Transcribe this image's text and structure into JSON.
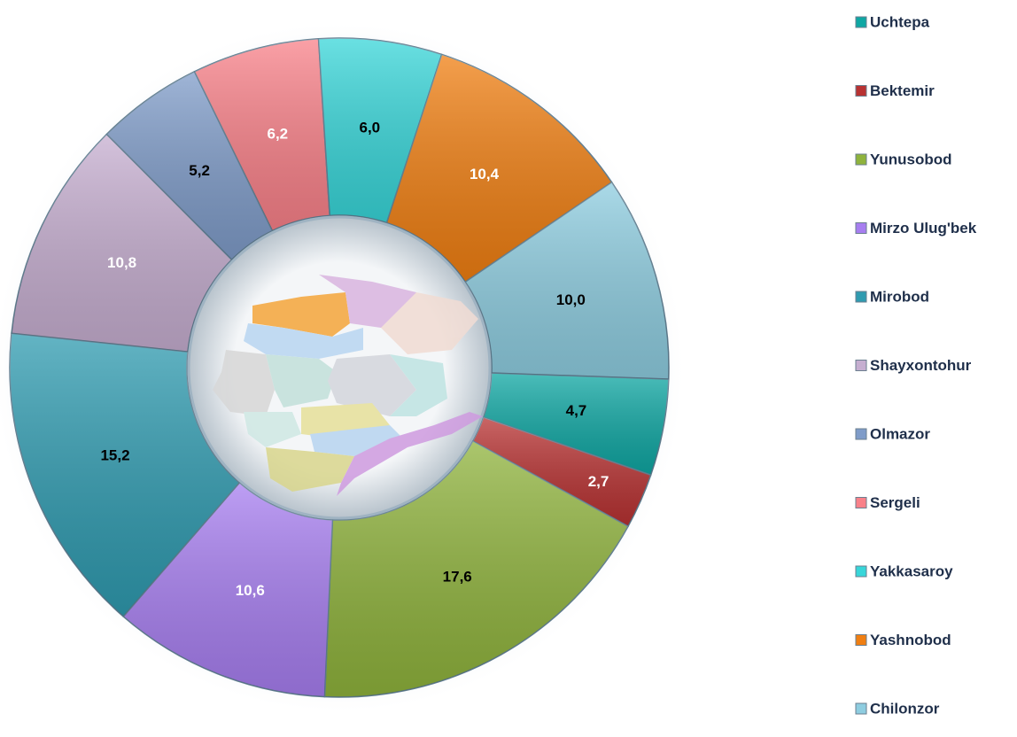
{
  "chart_data": {
    "type": "donut",
    "categories": [
      "Uchtepa",
      "Bektemir",
      "Yunusobod",
      "Mirzo Ulug'bek",
      "Mirobod",
      "Shayxontohur",
      "Olmazor",
      "Sergeli",
      "Yakkasaroy",
      "Yashnobod",
      "Chilonzor"
    ],
    "values": [
      4.7,
      2.7,
      17.6,
      10.6,
      15.2,
      10.8,
      5.2,
      6.2,
      6.0,
      10.4,
      10.0
    ],
    "value_labels": [
      "4,7",
      "2,7",
      "17,6",
      "10,6",
      "15,2",
      "10,8",
      "5,2",
      "6,2",
      "6,0",
      "10,4",
      "10,0"
    ],
    "colors": [
      "#0fa7a3",
      "#b83232",
      "#8fb33c",
      "#a77ef0",
      "#2f9bb0",
      "#c6aed0",
      "#7f9cc9",
      "#f98189",
      "#38d6d9",
      "#f07f12",
      "#8ecde0"
    ],
    "label_colors": [
      "#000000",
      "#ffffff",
      "#000000",
      "#ffffff",
      "#000000",
      "#ffffff",
      "#000000",
      "#ffffff",
      "#000000",
      "#ffffff",
      "#000000"
    ],
    "legend": "right"
  }
}
